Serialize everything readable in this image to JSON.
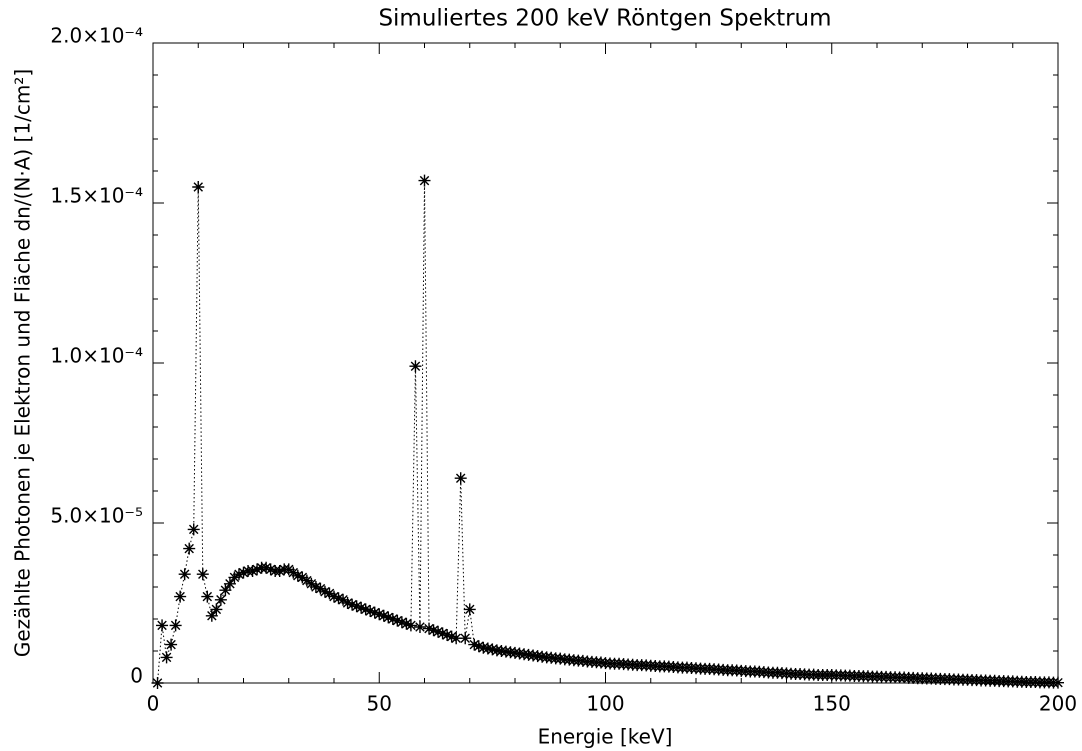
{
  "chart_data": {
    "type": "scatter",
    "title": "Simuliertes 200 keV Röntgen Spektrum",
    "x_label": "Energie [keV]",
    "y_label": "Gezählte Photonen je Elektron und Fläche dn/(N·A) [1/cm²]",
    "xlim": [
      0,
      200
    ],
    "ylim": [
      0,
      0.0002
    ],
    "xticks": [
      0,
      50,
      100,
      150,
      200
    ],
    "yticks": [
      0,
      {
        "value": 5e-05,
        "label": "5.0×10⁻⁵"
      },
      {
        "value": 0.0001,
        "label": "1.0×10⁻⁴"
      },
      {
        "value": 0.00015,
        "label": "1.5×10⁻⁴"
      },
      {
        "value": 0.0002,
        "label": "2.0×10⁻⁴"
      }
    ],
    "x_minor_ticks": [
      10,
      20,
      30,
      40,
      60,
      70,
      80,
      90,
      110,
      120,
      130,
      140,
      160,
      170,
      180,
      190
    ],
    "y_minor_ticks": [
      1e-05,
      2e-05,
      3e-05,
      4e-05,
      6e-05,
      7e-05,
      8e-05,
      9e-05,
      0.00011,
      0.00012,
      0.00013,
      0.00014,
      0.00016,
      0.00017,
      0.00018,
      0.00019
    ],
    "color": "#000000",
    "marker": "asterisk",
    "line_style": "dotted",
    "x": [
      1,
      2,
      3,
      4,
      5,
      6,
      7,
      8,
      9,
      10,
      11,
      12,
      13,
      14,
      15,
      16,
      17,
      18,
      19,
      20,
      21,
      22,
      23,
      24,
      25,
      26,
      27,
      28,
      29,
      30,
      31,
      32,
      33,
      34,
      35,
      36,
      37,
      38,
      39,
      40,
      41,
      42,
      43,
      44,
      45,
      46,
      47,
      48,
      49,
      50,
      51,
      52,
      53,
      54,
      55,
      56,
      57,
      58,
      59,
      60,
      61,
      62,
      63,
      64,
      65,
      66,
      67,
      68,
      69,
      70,
      71,
      72,
      73,
      74,
      75,
      76,
      77,
      78,
      79,
      80,
      81,
      82,
      83,
      84,
      85,
      86,
      87,
      88,
      89,
      90,
      91,
      92,
      93,
      94,
      95,
      96,
      97,
      98,
      99,
      100,
      101,
      102,
      103,
      104,
      105,
      106,
      107,
      108,
      109,
      110,
      111,
      112,
      113,
      114,
      115,
      116,
      117,
      118,
      119,
      120,
      121,
      122,
      123,
      124,
      125,
      126,
      127,
      128,
      129,
      130,
      131,
      132,
      133,
      134,
      135,
      136,
      137,
      138,
      139,
      140,
      141,
      142,
      143,
      144,
      145,
      146,
      147,
      148,
      149,
      150,
      151,
      152,
      153,
      154,
      155,
      156,
      157,
      158,
      159,
      160,
      161,
      162,
      163,
      164,
      165,
      166,
      167,
      168,
      169,
      170,
      171,
      172,
      173,
      174,
      175,
      176,
      177,
      178,
      179,
      180,
      181,
      182,
      183,
      184,
      185,
      186,
      187,
      188,
      189,
      190,
      191,
      192,
      193,
      194,
      195,
      196,
      197,
      198,
      199,
      200
    ],
    "values": [
      0,
      1.8e-05,
      8e-06,
      1.2e-05,
      1.8e-05,
      2.7e-05,
      3.4e-05,
      4.2e-05,
      4.8e-05,
      0.000155,
      3.4e-05,
      2.7e-05,
      2.1e-05,
      2.3e-05,
      2.6e-05,
      2.9e-05,
      3.1e-05,
      3.3e-05,
      3.4e-05,
      3.45e-05,
      3.5e-05,
      3.5e-05,
      3.55e-05,
      3.6e-05,
      3.6e-05,
      3.55e-05,
      3.5e-05,
      3.5e-05,
      3.55e-05,
      3.55e-05,
      3.45e-05,
      3.35e-05,
      3.3e-05,
      3.2e-05,
      3.1e-05,
      3e-05,
      2.95e-05,
      2.85e-05,
      2.8e-05,
      2.7e-05,
      2.65e-05,
      2.6e-05,
      2.5e-05,
      2.45e-05,
      2.4e-05,
      2.35e-05,
      2.3e-05,
      2.25e-05,
      2.2e-05,
      2.15e-05,
      2.1e-05,
      2.05e-05,
      2e-05,
      1.95e-05,
      1.9e-05,
      1.85e-05,
      1.8e-05,
      9.9e-05,
      1.75e-05,
      0.000157,
      1.7e-05,
      1.65e-05,
      1.6e-05,
      1.55e-05,
      1.5e-05,
      1.45e-05,
      1.4e-05,
      6.4e-05,
      1.4e-05,
      2.3e-05,
      1.2e-05,
      1.15e-05,
      1.1e-05,
      1.08e-05,
      1.05e-05,
      1.02e-05,
      1e-05,
      9.8e-06,
      9.6e-06,
      9.4e-06,
      9.2e-06,
      9e-06,
      8.8e-06,
      8.6e-06,
      8.4e-06,
      8.2e-06,
      8e-06,
      7.9e-06,
      7.7e-06,
      7.6e-06,
      7.4e-06,
      7.3e-06,
      7.1e-06,
      7e-06,
      6.9e-06,
      6.7e-06,
      6.6e-06,
      6.5e-06,
      6.4e-06,
      6.2e-06,
      6.1e-06,
      6e-06,
      6e-06,
      5.9e-06,
      5.8e-06,
      5.7e-06,
      5.6e-06,
      5.6e-06,
      5.5e-06,
      5.4e-06,
      5.3e-06,
      5.2e-06,
      5.2e-06,
      5.1e-06,
      5e-06,
      4.9e-06,
      4.8e-06,
      4.8e-06,
      4.7e-06,
      4.6e-06,
      4.5e-06,
      4.4e-06,
      4.4e-06,
      4.3e-06,
      4.2e-06,
      4.1e-06,
      4e-06,
      4e-06,
      3.9e-06,
      3.8e-06,
      3.7e-06,
      3.6e-06,
      3.6e-06,
      3.5e-06,
      3.4e-06,
      3.3e-06,
      3.2e-06,
      3.2e-06,
      3.1e-06,
      3e-06,
      2.9e-06,
      2.8e-06,
      2.8e-06,
      2.7e-06,
      2.6e-06,
      2.6e-06,
      2.5e-06,
      2.5e-06,
      2.5e-06,
      2.5e-06,
      2.4e-06,
      2.4e-06,
      2.3e-06,
      2.3e-06,
      2.2e-06,
      2.2e-06,
      2.1e-06,
      2.1e-06,
      2e-06,
      2e-06,
      1.9e-06,
      1.9e-06,
      1.8e-06,
      1.8e-06,
      1.7e-06,
      1.7e-06,
      1.6e-06,
      1.6e-06,
      1.5e-06,
      1.5e-06,
      1.4e-06,
      1.4e-06,
      1.3e-06,
      1.3e-06,
      1.2e-06,
      1.2e-06,
      1.1e-06,
      1.1e-06,
      1e-06,
      1e-06,
      9e-07,
      9e-07,
      8e-07,
      8e-07,
      7e-07,
      7e-07,
      6e-07,
      6e-07,
      5e-07,
      5e-07,
      4e-07,
      4e-07,
      3e-07,
      3e-07,
      3e-07,
      2e-07,
      2e-07,
      2e-07,
      1e-07,
      1e-07
    ]
  }
}
